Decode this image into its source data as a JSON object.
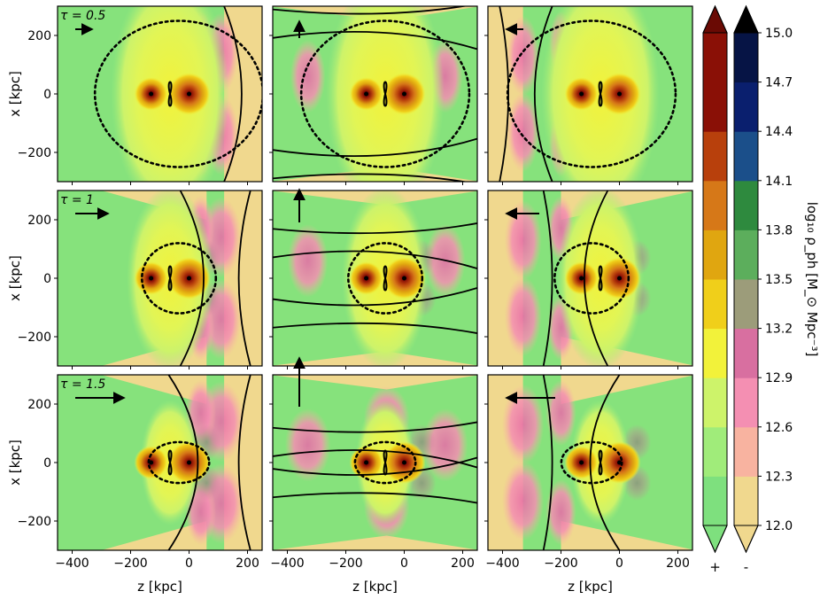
{
  "chart_data": {
    "type": "heatmap",
    "description_free": true,
    "panels_grid": {
      "rows": 3,
      "cols": 3
    },
    "row_labels": [
      "τ = 0.5",
      "τ = 1",
      "τ = 1.5"
    ],
    "xlabel": "z [kpc]",
    "ylabel": "x [kpc]",
    "xlim": [
      -450,
      250
    ],
    "ylim": [
      -300,
      300
    ],
    "xticks": [
      -400,
      -200,
      0,
      200
    ],
    "xtick_labels": [
      "−400",
      "−200",
      "0",
      "200"
    ],
    "yticks": [
      -200,
      0,
      200
    ],
    "ytick_labels": [
      "−200",
      "0",
      "200"
    ],
    "halos": [
      {
        "z": -130,
        "x": 0
      },
      {
        "z": 0,
        "x": 0
      }
    ],
    "velocity_arrows": {
      "columns": [
        "right",
        "up",
        "left"
      ],
      "lengths_by_row": [
        0.5,
        1,
        1.5
      ]
    },
    "colorbars": [
      {
        "name": "positive",
        "sign_label": "+",
        "colors": [
          "#7ee07e",
          "#a0ec7a",
          "#cdf36a",
          "#f2f23a",
          "#f0cf1a",
          "#e0a610",
          "#d67818",
          "#b8400c",
          "#8a1006"
        ]
      },
      {
        "name": "negative",
        "sign_label": "-",
        "colors": [
          "#f0d88e",
          "#f8b3a0",
          "#f48fb2",
          "#d86fa0",
          "#9c9c7a",
          "#5cae5c",
          "#2e8a3e",
          "#1b4f8a",
          "#0a1f6e",
          "#061445"
        ]
      }
    ],
    "colorbar_ticks": [
      "12.0",
      "12.3",
      "12.6",
      "12.9",
      "13.2",
      "13.5",
      "13.8",
      "14.1",
      "14.4",
      "14.7",
      "15.0"
    ],
    "colorbar_label": "log₁₀ ρ_ph [M_⊙ Mpc⁻³]"
  }
}
